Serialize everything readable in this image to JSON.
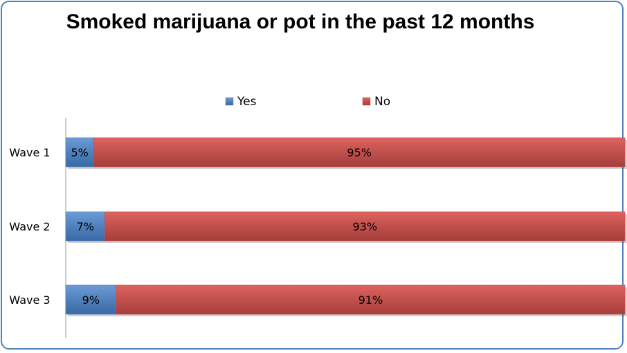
{
  "chart_data": {
    "type": "bar",
    "orientation": "horizontal",
    "stacked": "percent",
    "title": "Smoked marijuana or pot in the past 12 months",
    "categories": [
      "Wave 1",
      "Wave 2",
      "Wave 3"
    ],
    "series": [
      {
        "name": "Yes",
        "values": [
          5,
          7,
          9
        ],
        "labels": [
          "5%",
          "7%",
          "9%"
        ],
        "color": "#4f81bd"
      },
      {
        "name": "No",
        "values": [
          95,
          93,
          91
        ],
        "labels": [
          "95%",
          "93%",
          "91%"
        ],
        "color": "#c0504d"
      }
    ],
    "legend": "top",
    "grid": false
  }
}
